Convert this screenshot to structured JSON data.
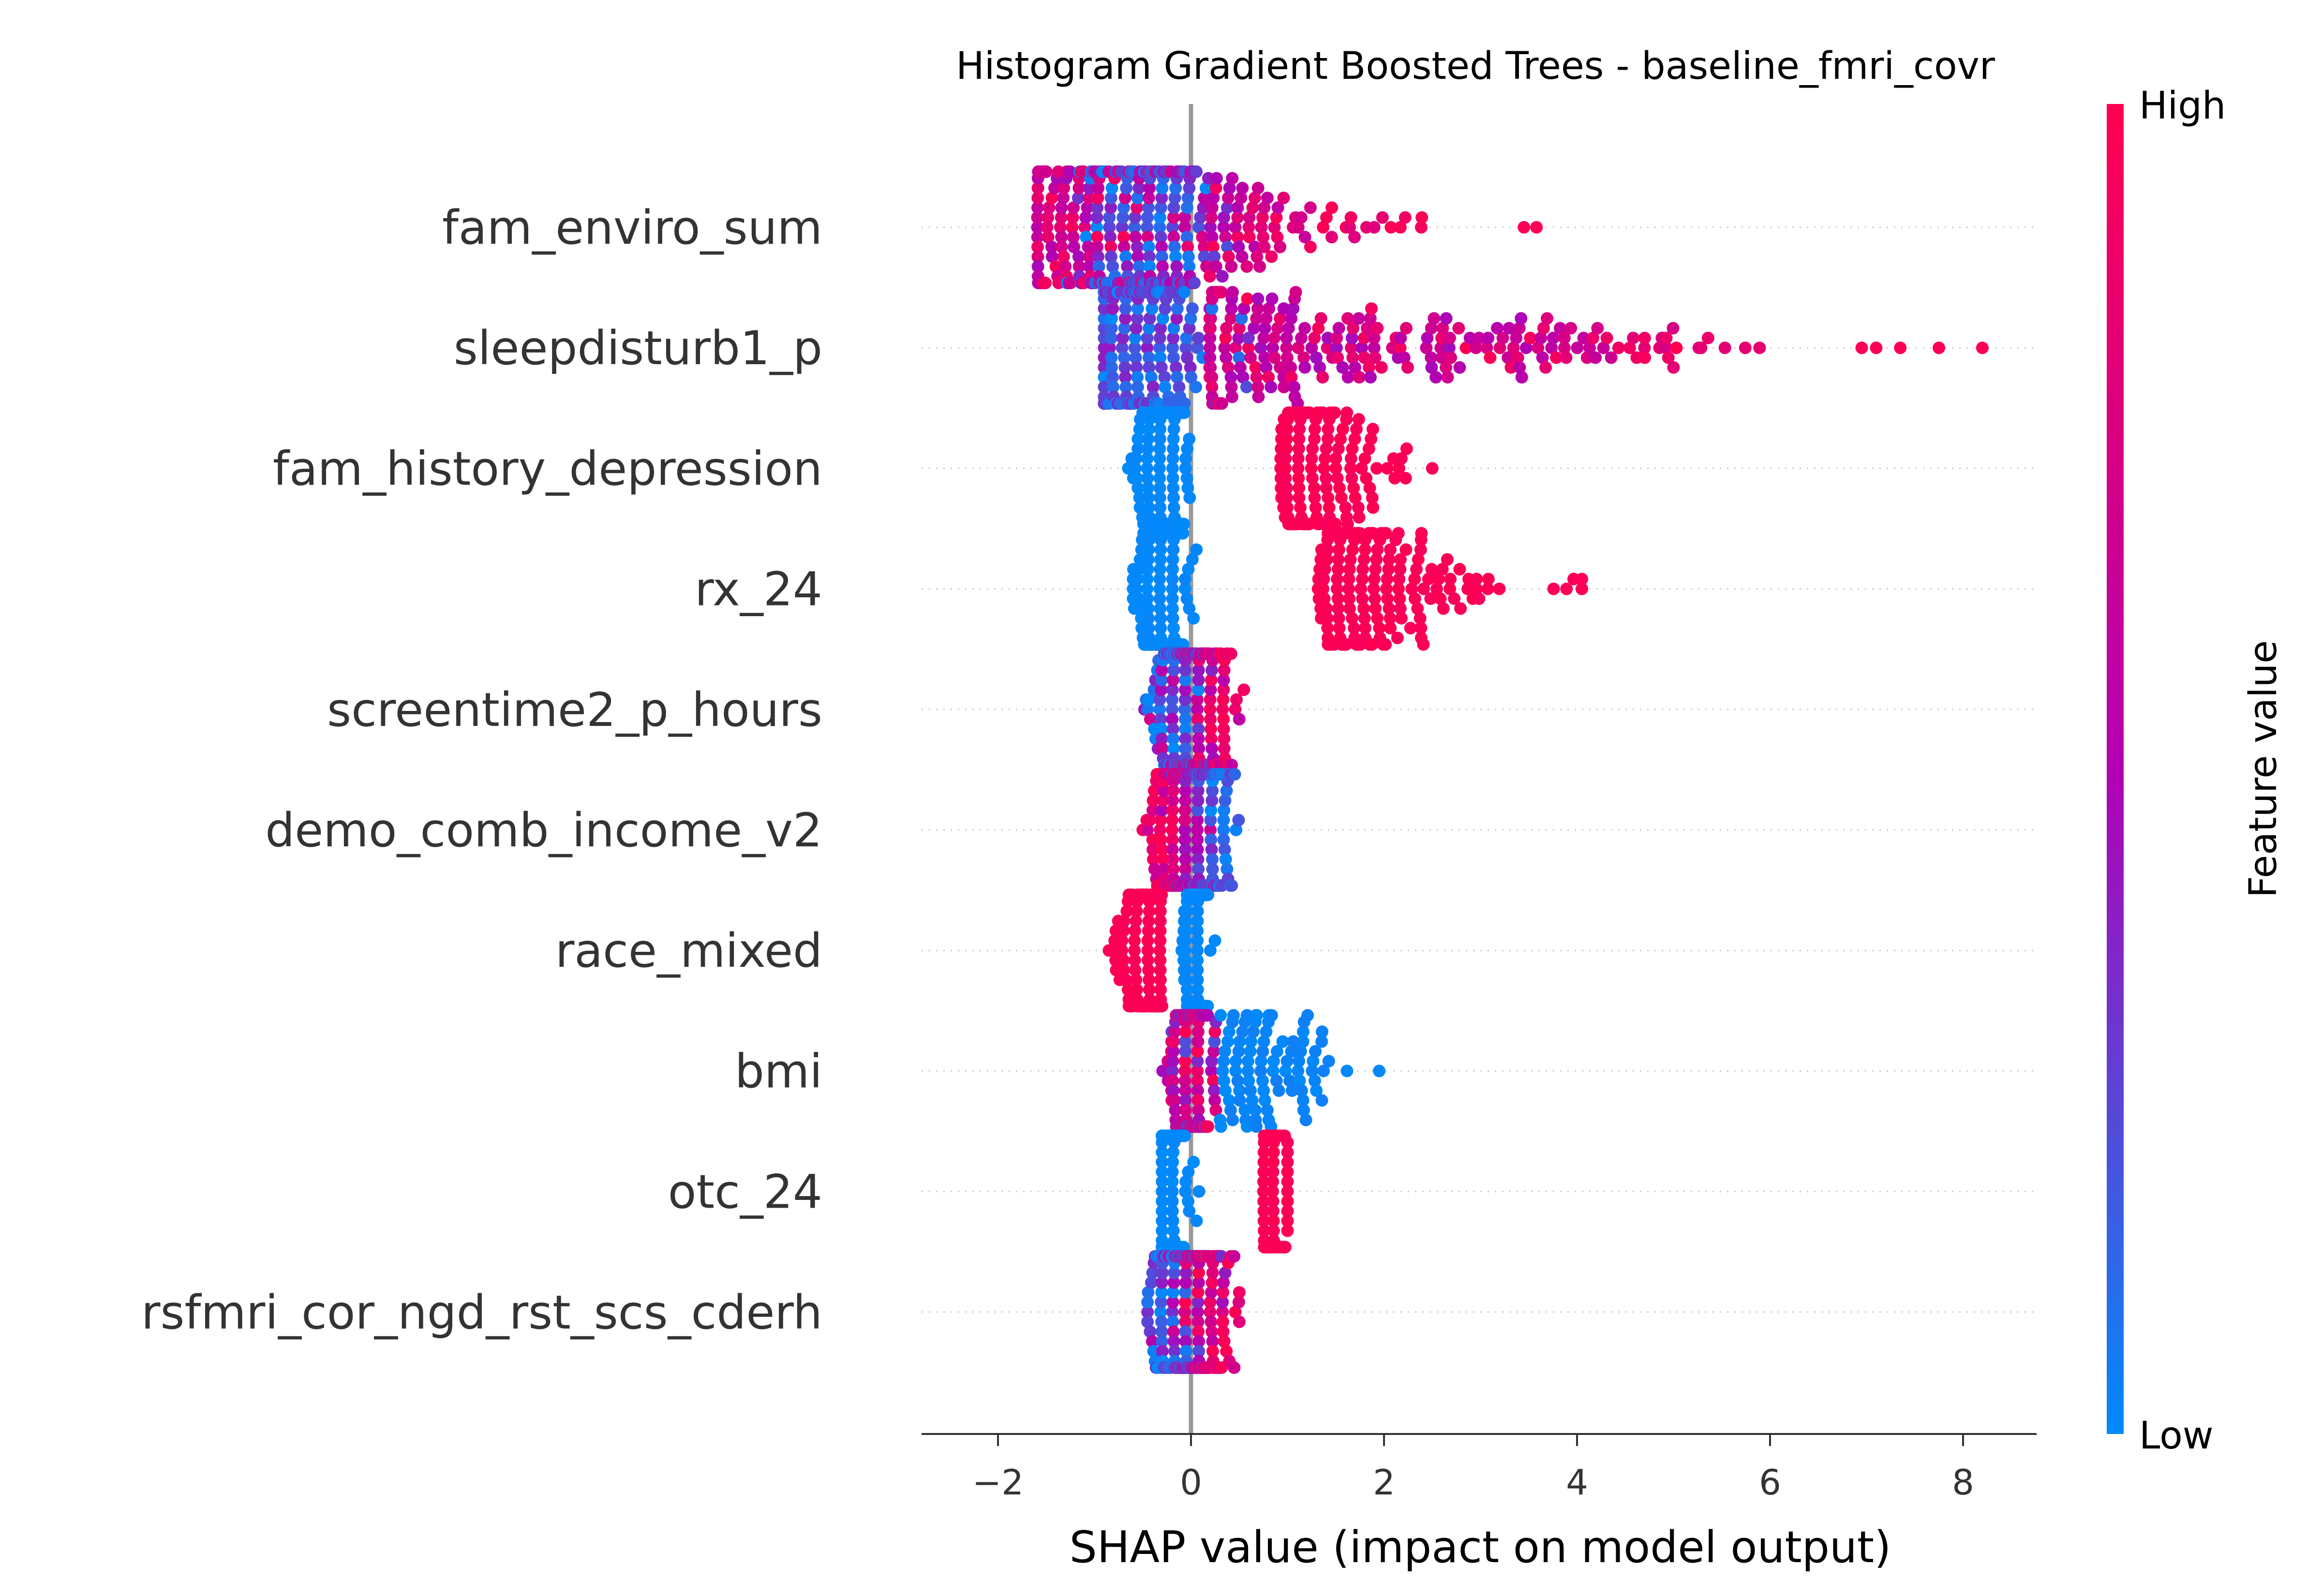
{
  "chart_data": {
    "type": "scatter",
    "subtype": "shap-beeswarm",
    "title": "Histogram Gradient Boosted Trees - baseline_fmri_covr",
    "xlabel": "SHAP value (impact on model output)",
    "xlim": [
      -2.8,
      8.7
    ],
    "xticks": [
      -2,
      0,
      2,
      4,
      6,
      8
    ],
    "xtick_labels": [
      "−2",
      "0",
      "2",
      "4",
      "6",
      "8"
    ],
    "zero_line": true,
    "grid": false,
    "colorbar": {
      "label": "Feature value",
      "high_label": "High",
      "low_label": "Low",
      "low_color": "#008bfb",
      "high_color": "#ff0051"
    },
    "features": [
      {
        "name": "fam_enviro_sum",
        "shap_range": [
          -2.3,
          3.6
        ],
        "pattern": "continuous_pos",
        "outliers": [
          3.45,
          3.58
        ]
      },
      {
        "name": "sleepdisturb1_p",
        "shap_range": [
          -0.9,
          8.2
        ],
        "pattern": "continuous_pos",
        "outliers": [
          2.85,
          3.1,
          6.95,
          7.1,
          7.35,
          7.75,
          8.2
        ]
      },
      {
        "name": "fam_history_depression",
        "shap_range": [
          -1.0,
          2.5
        ],
        "pattern": "binary_pos"
      },
      {
        "name": "rx_24",
        "shap_range": [
          -0.6,
          4.05
        ],
        "pattern": "binary_pos",
        "outliers": [
          4.05
        ]
      },
      {
        "name": "screentime2_p_hours",
        "shap_range": [
          -0.9,
          0.6
        ],
        "pattern": "mixed"
      },
      {
        "name": "demo_comb_income_v2",
        "shap_range": [
          -0.5,
          0.95
        ],
        "pattern": "continuous_neg"
      },
      {
        "name": "race_mixed",
        "shap_range": [
          -0.85,
          0.4
        ],
        "pattern": "binary_neg"
      },
      {
        "name": "bmi",
        "shap_range": [
          -0.35,
          1.95
        ],
        "pattern": "low_tail"
      },
      {
        "name": "otc_24",
        "shap_range": [
          -0.3,
          1.0
        ],
        "pattern": "binary_pos"
      },
      {
        "name": "rsfmri_cor_ngd_rst_scs_cderh",
        "shap_range": [
          -0.45,
          0.5
        ],
        "pattern": "mixed"
      }
    ]
  }
}
